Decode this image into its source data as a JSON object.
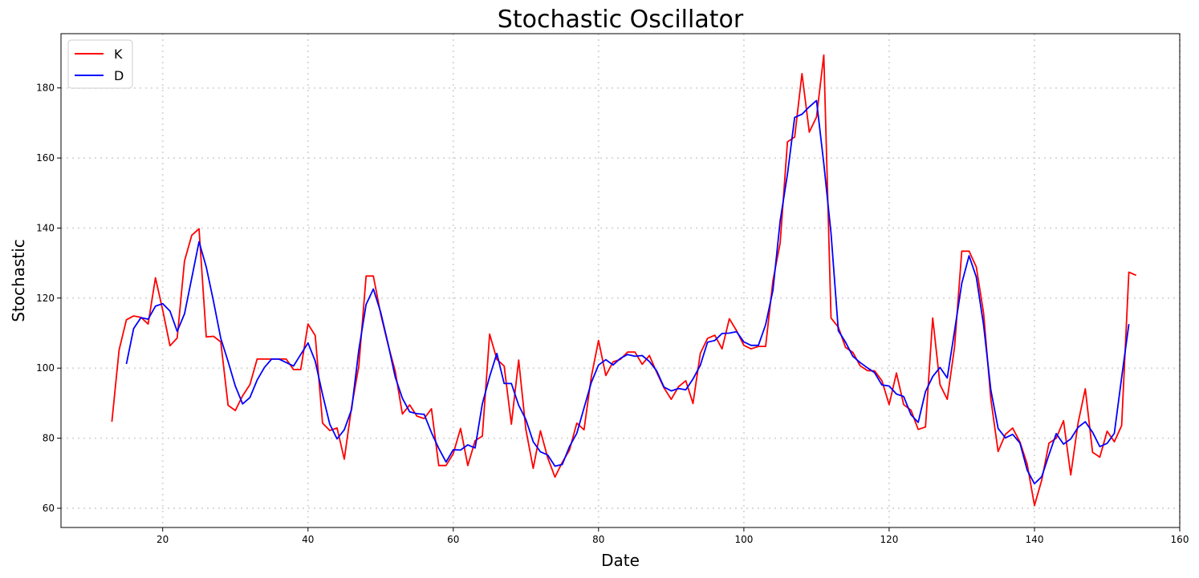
{
  "chart_data": {
    "type": "line",
    "title": "Stochastic Oscillator",
    "xlabel": "Date",
    "ylabel": "Stochastic",
    "xlim": [
      6,
      160
    ],
    "ylim": [
      54.5,
      195.5
    ],
    "xticks": [
      20,
      40,
      60,
      80,
      100,
      120,
      140,
      160
    ],
    "yticks": [
      60,
      80,
      100,
      120,
      140,
      160,
      180
    ],
    "grid": true,
    "legend": "top-left",
    "series": [
      {
        "name": "K",
        "color": "#ff0000",
        "x_start": 13,
        "values": [
          84.7,
          105.2,
          113.8,
          114.9,
          114.5,
          112.6,
          125.8,
          116.6,
          106.4,
          108.6,
          130.6,
          137.9,
          139.8,
          108.9,
          109.1,
          107.5,
          89.4,
          87.9,
          92.1,
          95.3,
          102.6,
          102.6,
          102.6,
          102.6,
          102.6,
          99.6,
          99.6,
          112.6,
          109.3,
          84.3,
          82.2,
          82.9,
          74.0,
          88.9,
          100.6,
          126.3,
          126.3,
          115.5,
          106.9,
          99.2,
          86.9,
          89.5,
          86.3,
          85.6,
          88.4,
          72.2,
          72.2,
          75.6,
          82.8,
          72.2,
          79.3,
          80.6,
          109.7,
          102.5,
          100.6,
          84.0,
          102.3,
          82.4,
          71.4,
          82.1,
          74.4,
          68.9,
          73.1,
          76.6,
          84.3,
          82.4,
          97.5,
          107.9,
          97.9,
          101.8,
          102.5,
          104.6,
          104.6,
          101.1,
          103.6,
          98.8,
          94.4,
          91.1,
          94.7,
          96.4,
          89.9,
          104.2,
          108.5,
          109.4,
          105.5,
          114.1,
          110.7,
          106.5,
          105.5,
          106.2,
          106.2,
          125.0,
          135.7,
          164.6,
          166.0,
          184.1,
          167.4,
          171.7,
          189.4,
          114.3,
          111.7,
          105.9,
          104.5,
          100.7,
          99.3,
          99.2,
          96.4,
          89.6,
          98.6,
          89.6,
          88.0,
          82.5,
          83.2,
          114.3,
          95.3,
          91.1,
          106.0,
          133.4,
          133.4,
          128.9,
          115.7,
          91.2,
          76.2,
          81.1,
          82.9,
          78.9,
          72.6,
          60.8,
          68.0,
          78.6,
          80.0,
          85.0,
          69.5,
          84.3,
          94.1,
          76.0,
          74.6,
          82.0,
          79.0,
          83.6,
          127.4,
          126.5
        ]
      },
      {
        "name": "D",
        "color": "#0000ff",
        "x_start": 15,
        "values": [
          101.2,
          111.3,
          114.4,
          114.0,
          117.7,
          118.4,
          116.3,
          110.5,
          115.5,
          125.7,
          136.1,
          128.9,
          119.0,
          108.5,
          101.9,
          94.9,
          89.8,
          91.6,
          96.6,
          100.2,
          102.6,
          102.6,
          101.6,
          100.6,
          103.9,
          107.2,
          102.0,
          92.5,
          84.0,
          79.8,
          82.4,
          88.2,
          105.2,
          118.2,
          122.6,
          116.0,
          107.2,
          97.5,
          91.4,
          87.5,
          87.0,
          86.8,
          81.6,
          77.1,
          73.2,
          76.7,
          76.6,
          78.1,
          77.2,
          89.8,
          97.6,
          104.2,
          95.6,
          95.6,
          89.4,
          85.3,
          79.0,
          76.1,
          75.2,
          72.0,
          72.5,
          77.6,
          81.4,
          88.6,
          95.9,
          100.9,
          102.4,
          100.9,
          102.8,
          103.9,
          103.4,
          103.6,
          101.9,
          99.2,
          94.6,
          93.5,
          94.2,
          93.8,
          96.9,
          100.8,
          107.4,
          107.9,
          109.9,
          110.0,
          110.4,
          107.5,
          106.5,
          106.5,
          112.4,
          122.2,
          142.0,
          155.4,
          171.6,
          172.5,
          174.6,
          176.4,
          158.4,
          138.5,
          110.7,
          107.4,
          103.4,
          101.6,
          100.1,
          98.7,
          95.2,
          94.9,
          92.6,
          91.9,
          86.7,
          84.5,
          93.3,
          97.6,
          100.2,
          97.2,
          110.6,
          124.2,
          132.1,
          126.0,
          112.3,
          93.8,
          82.8,
          80.1,
          81.1,
          78.6,
          70.9,
          67.0,
          69.0,
          75.3,
          81.3,
          78.3,
          79.8,
          83.1,
          84.7,
          81.7,
          77.6,
          78.5,
          81.4,
          97.3,
          112.6
        ]
      }
    ]
  }
}
